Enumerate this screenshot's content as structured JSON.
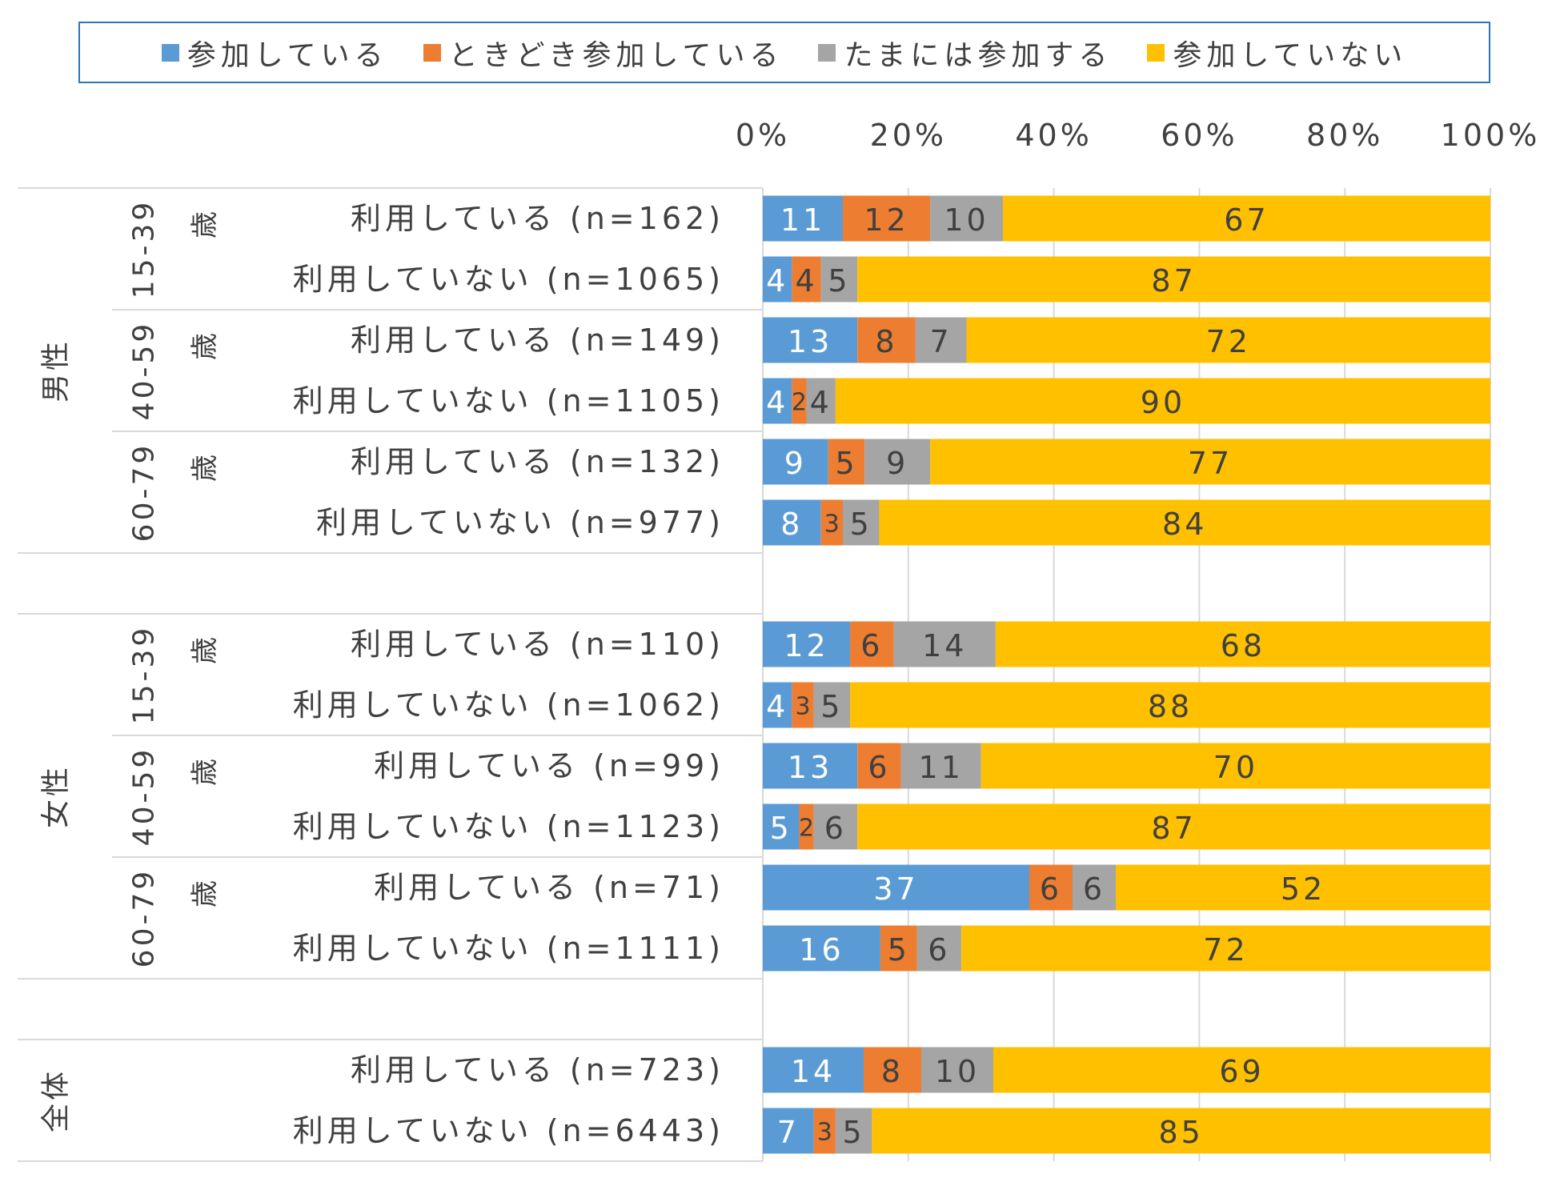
{
  "chart_data": {
    "type": "bar",
    "orientation": "horizontal",
    "stacked": true,
    "percent_stacked": true,
    "title": "",
    "xlabel": "",
    "ylabel": "",
    "xlim": [
      0,
      100
    ],
    "x_ticks": [
      "0%",
      "20%",
      "40%",
      "60%",
      "80%",
      "100%"
    ],
    "legend_position": "top",
    "grid": true,
    "series": [
      {
        "name": "参加している",
        "color": "#5b9bd5"
      },
      {
        "name": "ときどき参加している",
        "color": "#ed7d31"
      },
      {
        "name": "たまには参加する",
        "color": "#a5a5a5"
      },
      {
        "name": "参加していない",
        "color": "#ffc000"
      }
    ],
    "groups": [
      {
        "gender": "男性",
        "subgroups": [
          {
            "age": "15-39",
            "unit": "歳",
            "rows": [
              {
                "label": "利用している (n=162)",
                "values": [
                  11,
                  12,
                  10,
                  67
                ]
              },
              {
                "label": "利用していない (n=1065)",
                "values": [
                  4,
                  4,
                  5,
                  87
                ]
              }
            ]
          },
          {
            "age": "40-59",
            "unit": "歳",
            "rows": [
              {
                "label": "利用している (n=149)",
                "values": [
                  13,
                  8,
                  7,
                  72
                ]
              },
              {
                "label": "利用していない (n=1105)",
                "values": [
                  4,
                  2,
                  4,
                  90
                ]
              }
            ]
          },
          {
            "age": "60-79",
            "unit": "歳",
            "rows": [
              {
                "label": "利用している (n=132)",
                "values": [
                  9,
                  5,
                  9,
                  77
                ]
              },
              {
                "label": "利用していない (n=977)",
                "values": [
                  8,
                  3,
                  5,
                  84
                ]
              }
            ]
          }
        ]
      },
      {
        "gender": "女性",
        "subgroups": [
          {
            "age": "15-39",
            "unit": "歳",
            "rows": [
              {
                "label": "利用している (n=110)",
                "values": [
                  12,
                  6,
                  14,
                  68
                ]
              },
              {
                "label": "利用していない (n=1062)",
                "values": [
                  4,
                  3,
                  5,
                  88
                ]
              }
            ]
          },
          {
            "age": "40-59",
            "unit": "歳",
            "rows": [
              {
                "label": "利用している (n=99)",
                "values": [
                  13,
                  6,
                  11,
                  70
                ]
              },
              {
                "label": "利用していない (n=1123)",
                "values": [
                  5,
                  2,
                  6,
                  87
                ]
              }
            ]
          },
          {
            "age": "60-79",
            "unit": "歳",
            "rows": [
              {
                "label": "利用している (n=71)",
                "values": [
                  37,
                  6,
                  6,
                  52
                ]
              },
              {
                "label": "利用していない (n=1111)",
                "values": [
                  16,
                  5,
                  6,
                  72
                ]
              }
            ]
          }
        ]
      },
      {
        "gender": "全体",
        "subgroups": [
          {
            "age": "",
            "unit": "",
            "rows": [
              {
                "label": "利用している (n=723)",
                "values": [
                  14,
                  8,
                  10,
                  69
                ]
              },
              {
                "label": "利用していない (n=6443)",
                "values": [
                  7,
                  3,
                  5,
                  85
                ]
              }
            ]
          }
        ]
      }
    ]
  }
}
